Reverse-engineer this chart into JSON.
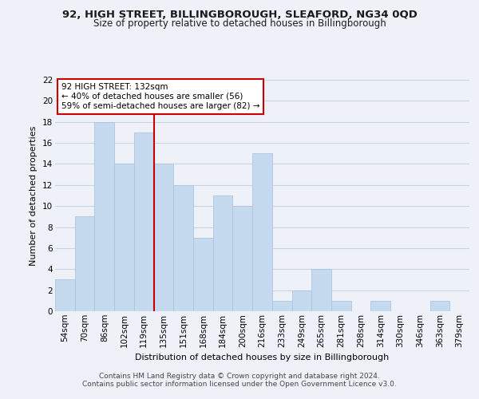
{
  "title": "92, HIGH STREET, BILLINGBOROUGH, SLEAFORD, NG34 0QD",
  "subtitle": "Size of property relative to detached houses in Billingborough",
  "xlabel": "Distribution of detached houses by size in Billingborough",
  "ylabel": "Number of detached properties",
  "bin_labels": [
    "54sqm",
    "70sqm",
    "86sqm",
    "102sqm",
    "119sqm",
    "135sqm",
    "151sqm",
    "168sqm",
    "184sqm",
    "200sqm",
    "216sqm",
    "233sqm",
    "249sqm",
    "265sqm",
    "281sqm",
    "298sqm",
    "314sqm",
    "330sqm",
    "346sqm",
    "363sqm",
    "379sqm"
  ],
  "bar_heights": [
    3,
    9,
    18,
    14,
    17,
    14,
    12,
    7,
    11,
    10,
    15,
    1,
    2,
    4,
    1,
    0,
    1,
    0,
    0,
    1,
    0
  ],
  "bar_color": "#c5d9ef",
  "bar_edge_color": "#adc4e0",
  "grid_color": "#c8d4e4",
  "property_line_x": 4.5,
  "property_line_color": "#cc0000",
  "annotation_line1": "92 HIGH STREET: 132sqm",
  "annotation_line2": "← 40% of detached houses are smaller (56)",
  "annotation_line3": "59% of semi-detached houses are larger (82) →",
  "annotation_box_color": "#ffffff",
  "annotation_box_edge": "#cc0000",
  "ylim": [
    0,
    22
  ],
  "yticks": [
    0,
    2,
    4,
    6,
    8,
    10,
    12,
    14,
    16,
    18,
    20,
    22
  ],
  "footer_line1": "Contains HM Land Registry data © Crown copyright and database right 2024.",
  "footer_line2": "Contains public sector information licensed under the Open Government Licence v3.0.",
  "background_color": "#eef2f8",
  "title_fontsize": 9.5,
  "subtitle_fontsize": 8.5,
  "axis_label_fontsize": 8,
  "tick_label_fontsize": 7.5,
  "footer_fontsize": 6.5
}
